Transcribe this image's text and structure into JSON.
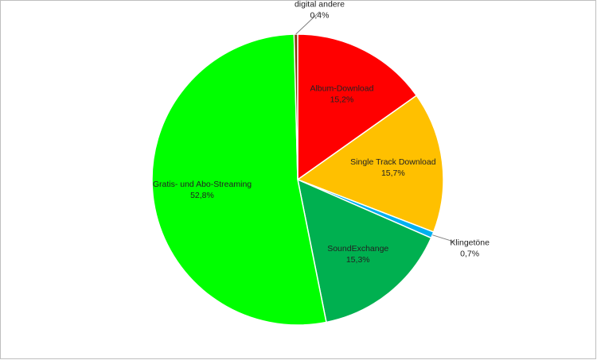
{
  "chart_data": {
    "type": "pie",
    "categories": [
      "Album-Download",
      "Single Track Download",
      "Klingetöne",
      "SoundExchange",
      "Gratis- und Abo-Streaming",
      "digital andere"
    ],
    "values": [
      15.2,
      15.7,
      0.7,
      15.3,
      52.8,
      0.4
    ],
    "value_labels": [
      "15,2%",
      "15,7%",
      "0,7%",
      "15,3%",
      "52,8%",
      "0,4%"
    ],
    "colors": [
      "#ff0000",
      "#ffc000",
      "#00b0f0",
      "#00b050",
      "#00ff00",
      "#843c0c"
    ]
  }
}
